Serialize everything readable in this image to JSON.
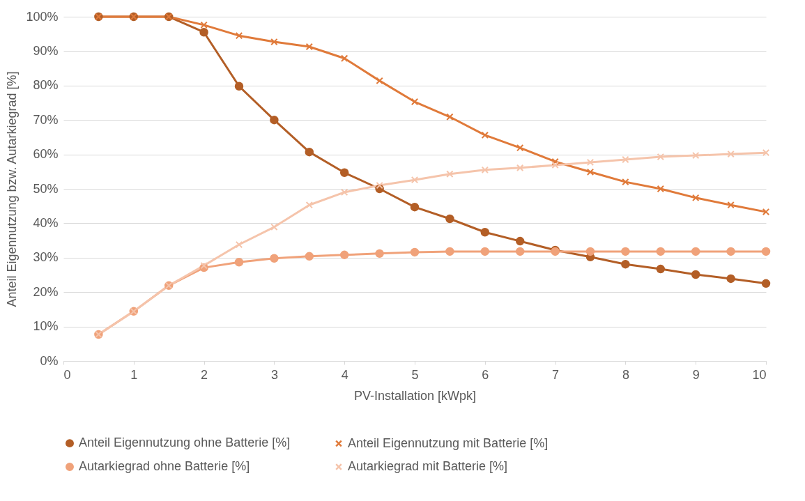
{
  "chart_data": {
    "type": "line",
    "xlabel": "PV-Installation [kWpk]",
    "ylabel": "Anteil Eigennutzung bzw. Autarkiegrad [%]",
    "x": [
      0.5,
      1,
      1.5,
      2,
      2.5,
      3,
      3.5,
      4,
      4.5,
      5,
      5.5,
      6,
      6.5,
      7,
      7.5,
      8,
      8.5,
      9,
      9.5,
      10
    ],
    "series": [
      {
        "name": "Anteil Eigennutzung ohne Batterie [%]",
        "color": "#b35e26",
        "marker": "circle",
        "values": [
          100,
          100,
          100,
          95.5,
          79.8,
          70,
          60.7,
          54.7,
          50,
          44.7,
          41.3,
          37.4,
          34.8,
          32.2,
          30.2,
          28.1,
          26.7,
          25.1,
          23.9,
          22.5
        ]
      },
      {
        "name": "Anteil Eigennutzung mit Batterie [%]",
        "color": "#e07a3a",
        "marker": "cross",
        "values": [
          100,
          100,
          100,
          97.6,
          94.5,
          92.7,
          91.3,
          87.9,
          81.4,
          75.3,
          70.9,
          65.6,
          61.9,
          57.9,
          54.9,
          52,
          50,
          47.4,
          45.3,
          43.3
        ]
      },
      {
        "name": "Autarkiegrad ohne Batterie [%]",
        "color": "#f0a27a",
        "marker": "circle",
        "values": [
          7.7,
          14.4,
          21.9,
          27.1,
          28.7,
          29.8,
          30.4,
          30.8,
          31.2,
          31.6,
          31.8,
          31.8,
          31.8,
          31.8,
          31.8,
          31.8,
          31.8,
          31.8,
          31.8,
          31.8
        ]
      },
      {
        "name": "Autarkiegrad mit Batterie [%]",
        "color": "#f5c4ab",
        "marker": "cross",
        "values": [
          7.7,
          14.4,
          21.9,
          27.7,
          33.8,
          38.9,
          45.3,
          49,
          51,
          52.6,
          54.3,
          55.5,
          56.1,
          56.9,
          57.7,
          58.5,
          59.3,
          59.7,
          60.1,
          60.5
        ]
      }
    ],
    "xlim": [
      0,
      10
    ],
    "xticks": [
      0,
      1,
      2,
      3,
      4,
      5,
      6,
      7,
      8,
      9,
      10
    ],
    "ylim": [
      0,
      100
    ],
    "yticks": [
      {
        "value": 0,
        "label": "0%"
      },
      {
        "value": 10,
        "label": "10%"
      },
      {
        "value": 20,
        "label": "20%"
      },
      {
        "value": 30,
        "label": "30%"
      },
      {
        "value": 40,
        "label": "40%"
      },
      {
        "value": 50,
        "label": "50%"
      },
      {
        "value": 60,
        "label": "60%"
      },
      {
        "value": 70,
        "label": "70%"
      },
      {
        "value": 80,
        "label": "80%"
      },
      {
        "value": 90,
        "label": "90%"
      },
      {
        "value": 100,
        "label": "100%"
      }
    ],
    "grid": "y",
    "legend": "bottom",
    "line_style": "solid"
  }
}
